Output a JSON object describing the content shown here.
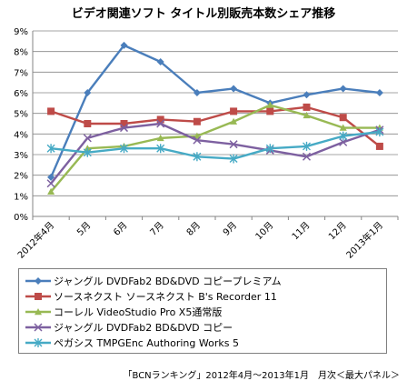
{
  "chart_data": {
    "type": "line",
    "title": "ビデオ関連ソフト タイトル別販売本数シェア推移",
    "categories": [
      "2012年4月",
      "5月",
      "6月",
      "7月",
      "8月",
      "9月",
      "10月",
      "11月",
      "12月",
      "2013年1月"
    ],
    "ylim": [
      0,
      9
    ],
    "yticks": [
      "0%",
      "1%",
      "2%",
      "3%",
      "4%",
      "5%",
      "6%",
      "7%",
      "8%",
      "9%"
    ],
    "grid": true,
    "legend_position": "bottom",
    "series": [
      {
        "name": "ジャングル DVDFab2 BD&DVD コピープレミアム",
        "color": "#4a7ebb",
        "marker": "diamond",
        "values": [
          1.9,
          6.0,
          8.3,
          7.5,
          6.0,
          6.2,
          5.5,
          5.9,
          6.2,
          6.0
        ]
      },
      {
        "name": "ソースネクスト ソースネクスト B's Recorder 11",
        "color": "#be4b48",
        "marker": "square",
        "values": [
          5.1,
          4.5,
          4.5,
          4.7,
          4.6,
          5.1,
          5.1,
          5.3,
          4.8,
          3.4
        ]
      },
      {
        "name": "コーレル VideoStudio Pro X5通常版",
        "color": "#98b954",
        "marker": "triangle",
        "values": [
          1.2,
          3.3,
          3.4,
          3.8,
          3.9,
          4.6,
          5.4,
          4.9,
          4.3,
          4.3
        ]
      },
      {
        "name": "ジャングル DVDFab2 BD&DVD コピー",
        "color": "#7d60a0",
        "marker": "x",
        "values": [
          1.6,
          3.8,
          4.3,
          4.5,
          3.7,
          3.5,
          3.2,
          2.9,
          3.6,
          4.2
        ]
      },
      {
        "name": "ペガシス TMPGEnc Authoring Works 5",
        "color": "#46aac5",
        "marker": "star",
        "values": [
          3.3,
          3.1,
          3.3,
          3.3,
          2.9,
          2.8,
          3.3,
          3.4,
          3.9,
          4.1
        ]
      }
    ]
  },
  "source_note": "「BCNランキング」2012年4月～2013年1月　月次＜最大パネル＞"
}
